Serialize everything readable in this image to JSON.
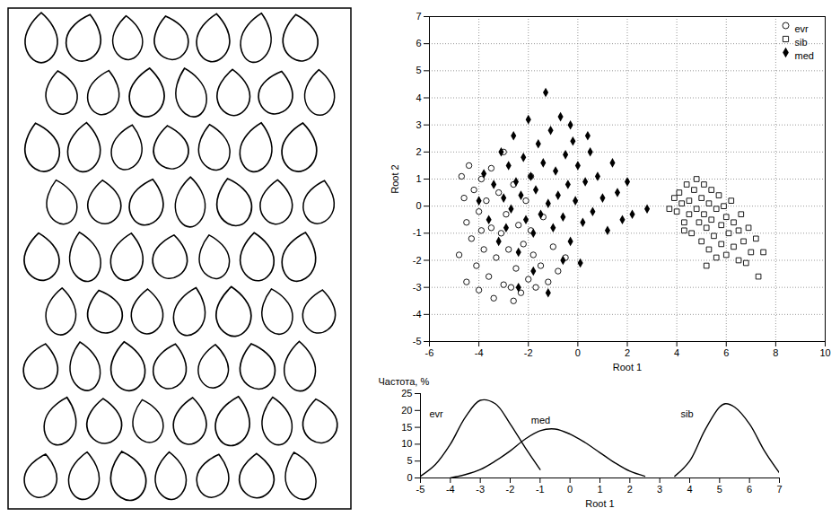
{
  "chart_data": [
    {
      "type": "scatter",
      "x_label": "Root 1",
      "y_label": "Root 2",
      "xlim": [
        -6,
        10
      ],
      "ylim": [
        -5,
        7
      ],
      "xticks": [
        -6,
        -4,
        -2,
        0,
        2,
        4,
        6,
        8,
        10
      ],
      "yticks": [
        -5,
        -4,
        -3,
        -2,
        -1,
        0,
        1,
        2,
        3,
        4,
        5,
        6,
        7
      ],
      "grid": true,
      "legend": "top-right",
      "series": [
        {
          "name": "evr",
          "color": "#000000",
          "marker": "circle_open",
          "points": [
            [
              -4.8,
              -1.8
            ],
            [
              -4.7,
              1.1
            ],
            [
              -4.6,
              0.3
            ],
            [
              -4.5,
              -0.6
            ],
            [
              -4.5,
              -2.8
            ],
            [
              -4.4,
              1.5
            ],
            [
              -4.3,
              -1.2
            ],
            [
              -4.2,
              0.6
            ],
            [
              -4.1,
              -2.2
            ],
            [
              -4.0,
              -0.2
            ],
            [
              -4.0,
              -3.1
            ],
            [
              -3.9,
              1.0
            ],
            [
              -3.8,
              -1.6
            ],
            [
              -3.7,
              0.2
            ],
            [
              -3.6,
              -2.6
            ],
            [
              -3.5,
              -0.8
            ],
            [
              -3.5,
              1.4
            ],
            [
              -3.4,
              -3.4
            ],
            [
              -3.3,
              -1.9
            ],
            [
              -3.2,
              0.5
            ],
            [
              -3.1,
              -1.0
            ],
            [
              -3.0,
              -2.9
            ],
            [
              -3.0,
              2.0
            ],
            [
              -2.9,
              -0.3
            ],
            [
              -2.8,
              -1.6
            ],
            [
              -2.7,
              -3.0
            ],
            [
              -2.6,
              0.8
            ],
            [
              -2.5,
              -2.3
            ],
            [
              -2.4,
              -0.7
            ],
            [
              -2.3,
              -3.2
            ],
            [
              -2.2,
              -1.4
            ],
            [
              -2.1,
              0.2
            ],
            [
              -2.0,
              -2.7
            ],
            [
              -1.9,
              -0.9
            ],
            [
              -1.8,
              -1.8
            ],
            [
              -1.7,
              -3.0
            ],
            [
              -1.5,
              -2.2
            ],
            [
              -1.4,
              -0.4
            ],
            [
              -1.2,
              -2.8
            ],
            [
              -1.0,
              -1.5
            ],
            [
              -0.8,
              -2.4
            ],
            [
              -0.5,
              -1.9
            ],
            [
              -3.9,
              -0.9
            ],
            [
              -2.6,
              -3.5
            ],
            [
              -1.9,
              1.1
            ]
          ]
        },
        {
          "name": "sib",
          "color": "#000000",
          "marker": "square_open",
          "points": [
            [
              3.7,
              -0.1
            ],
            [
              3.9,
              0.3
            ],
            [
              4.0,
              -0.2
            ],
            [
              4.1,
              0.5
            ],
            [
              4.2,
              0.1
            ],
            [
              4.3,
              -0.6
            ],
            [
              4.4,
              0.8
            ],
            [
              4.5,
              0.2
            ],
            [
              4.5,
              -0.3
            ],
            [
              4.6,
              -1.0
            ],
            [
              4.7,
              0.6
            ],
            [
              4.8,
              1.0
            ],
            [
              4.8,
              -0.1
            ],
            [
              4.9,
              -0.6
            ],
            [
              5.0,
              0.3
            ],
            [
              5.0,
              -1.3
            ],
            [
              5.1,
              0.8
            ],
            [
              5.1,
              -0.3
            ],
            [
              5.2,
              -0.8
            ],
            [
              5.3,
              0.1
            ],
            [
              5.3,
              -1.6
            ],
            [
              5.4,
              0.6
            ],
            [
              5.4,
              -0.5
            ],
            [
              5.5,
              -1.1
            ],
            [
              5.6,
              -0.1
            ],
            [
              5.6,
              -1.9
            ],
            [
              5.7,
              0.4
            ],
            [
              5.8,
              -0.7
            ],
            [
              5.8,
              -1.4
            ],
            [
              5.9,
              0.0
            ],
            [
              6.0,
              -0.4
            ],
            [
              6.0,
              -1.8
            ],
            [
              6.1,
              -1.0
            ],
            [
              6.2,
              0.2
            ],
            [
              6.3,
              -0.6
            ],
            [
              6.3,
              -1.5
            ],
            [
              6.5,
              -0.9
            ],
            [
              6.5,
              -2.0
            ],
            [
              6.6,
              -0.3
            ],
            [
              6.7,
              -1.3
            ],
            [
              6.9,
              -0.8
            ],
            [
              7.0,
              -1.7
            ],
            [
              7.2,
              -1.2
            ],
            [
              7.5,
              -1.7
            ],
            [
              7.3,
              -2.6
            ],
            [
              4.3,
              -0.9
            ],
            [
              5.2,
              -2.2
            ],
            [
              6.8,
              -2.1
            ]
          ]
        },
        {
          "name": "med",
          "color": "#000000",
          "marker": "diamond_filled",
          "points": [
            [
              -4.0,
              0.2
            ],
            [
              -3.8,
              1.2
            ],
            [
              -3.6,
              -0.5
            ],
            [
              -3.4,
              0.8
            ],
            [
              -3.2,
              -1.3
            ],
            [
              -3.1,
              2.0
            ],
            [
              -3.0,
              0.3
            ],
            [
              -2.9,
              -0.8
            ],
            [
              -2.8,
              1.5
            ],
            [
              -2.7,
              -0.1
            ],
            [
              -2.6,
              2.6
            ],
            [
              -2.5,
              0.9
            ],
            [
              -2.4,
              -1.7
            ],
            [
              -2.3,
              0.4
            ],
            [
              -2.2,
              1.8
            ],
            [
              -2.1,
              -0.5
            ],
            [
              -2.0,
              3.2
            ],
            [
              -1.9,
              1.1
            ],
            [
              -1.8,
              -1.0
            ],
            [
              -1.7,
              0.6
            ],
            [
              -1.6,
              2.3
            ],
            [
              -1.5,
              -0.3
            ],
            [
              -1.4,
              1.6
            ],
            [
              -1.3,
              4.2
            ],
            [
              -1.2,
              0.1
            ],
            [
              -1.1,
              2.8
            ],
            [
              -1.0,
              -0.8
            ],
            [
              -0.9,
              1.3
            ],
            [
              -0.8,
              0.4
            ],
            [
              -0.7,
              3.3
            ],
            [
              -0.6,
              -0.4
            ],
            [
              -0.5,
              1.9
            ],
            [
              -0.4,
              0.8
            ],
            [
              -0.3,
              -1.3
            ],
            [
              -0.2,
              2.4
            ],
            [
              -0.1,
              0.2
            ],
            [
              0.0,
              1.5
            ],
            [
              0.2,
              -0.6
            ],
            [
              0.3,
              0.9
            ],
            [
              0.5,
              2.0
            ],
            [
              0.6,
              -0.2
            ],
            [
              0.8,
              1.1
            ],
            [
              1.0,
              0.3
            ],
            [
              1.2,
              -0.9
            ],
            [
              1.4,
              1.6
            ],
            [
              1.6,
              0.5
            ],
            [
              1.8,
              -0.5
            ],
            [
              2.0,
              0.9
            ],
            [
              2.2,
              -0.3
            ],
            [
              2.8,
              -0.1
            ],
            [
              -1.8,
              -2.4
            ],
            [
              -1.2,
              -3.2
            ],
            [
              -0.6,
              -2.0
            ],
            [
              0.1,
              -2.1
            ],
            [
              -2.4,
              -3.0
            ],
            [
              -0.3,
              3.0
            ],
            [
              0.4,
              2.6
            ]
          ]
        }
      ]
    },
    {
      "type": "line",
      "x_label": "Root 1",
      "y_label": "Частота, %",
      "xlim": [
        -5,
        7
      ],
      "ylim": [
        0,
        25
      ],
      "xticks": [
        -5,
        -4,
        -3,
        -2,
        -1,
        0,
        1,
        2,
        3,
        4,
        5,
        6,
        7
      ],
      "yticks": [
        0,
        5,
        10,
        15,
        20,
        25
      ],
      "grid": false,
      "series": [
        {
          "name": "evr",
          "color": "#000000",
          "label_x": -4.7,
          "label_y": 19,
          "x": [
            -5,
            -4.5,
            -4,
            -3.5,
            -3,
            -2.5,
            -2,
            -1.5,
            -1
          ],
          "values": [
            0.5,
            4,
            10,
            18,
            23,
            22,
            16,
            9,
            2.5
          ]
        },
        {
          "name": "med",
          "color": "#000000",
          "label_x": -1.3,
          "label_y": 17,
          "x": [
            -4,
            -3.5,
            -3,
            -2.5,
            -2,
            -1.5,
            -1,
            -0.5,
            0,
            0.5,
            1,
            1.5,
            2,
            2.5
          ],
          "values": [
            0,
            1,
            2.5,
            5,
            8,
            11.5,
            14,
            14.5,
            13,
            10.5,
            7.5,
            4.5,
            2,
            0.5
          ]
        },
        {
          "name": "sib",
          "color": "#000000",
          "label_x": 3.7,
          "label_y": 19,
          "x": [
            3.5,
            4,
            4.5,
            5,
            5.2,
            5.5,
            6,
            6.5,
            7
          ],
          "values": [
            0.5,
            5,
            14,
            21,
            22,
            21,
            16,
            8,
            1.5
          ]
        }
      ]
    }
  ]
}
